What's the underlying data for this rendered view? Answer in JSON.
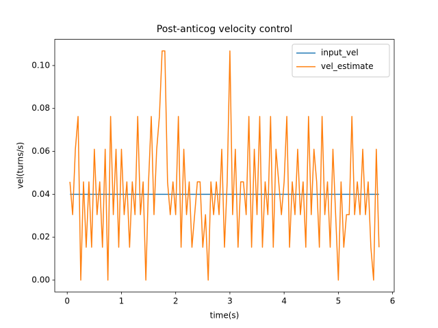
{
  "chart_data": {
    "type": "line",
    "title": "Post-anticog velocity control",
    "xlabel": "time(s)",
    "ylabel": "vel(turns/s)",
    "x": [
      0.05,
      0.1,
      0.15,
      0.2,
      0.25,
      0.3,
      0.35,
      0.4,
      0.45,
      0.5,
      0.55,
      0.6,
      0.65,
      0.7,
      0.75,
      0.8,
      0.85,
      0.9,
      0.95,
      1.0,
      1.05,
      1.1,
      1.15,
      1.2,
      1.25,
      1.3,
      1.35,
      1.4,
      1.45,
      1.5,
      1.55,
      1.6,
      1.65,
      1.7,
      1.75,
      1.8,
      1.85,
      1.9,
      1.95,
      2.0,
      2.05,
      2.1,
      2.15,
      2.2,
      2.25,
      2.3,
      2.35,
      2.4,
      2.45,
      2.5,
      2.55,
      2.6,
      2.65,
      2.7,
      2.75,
      2.8,
      2.85,
      2.9,
      2.95,
      3.0,
      3.05,
      3.1,
      3.15,
      3.2,
      3.25,
      3.3,
      3.35,
      3.4,
      3.45,
      3.5,
      3.55,
      3.6,
      3.65,
      3.7,
      3.75,
      3.8,
      3.85,
      3.9,
      3.95,
      4.0,
      4.05,
      4.1,
      4.15,
      4.2,
      4.25,
      4.3,
      4.35,
      4.4,
      4.45,
      4.5,
      4.55,
      4.6,
      4.65,
      4.7,
      4.75,
      4.8,
      4.85,
      4.9,
      4.95,
      5.0,
      5.05,
      5.1,
      5.15,
      5.2,
      5.25,
      5.3,
      5.35,
      5.4,
      5.45,
      5.5,
      5.55,
      5.6,
      5.65,
      5.7,
      5.75
    ],
    "series": [
      {
        "name": "input_vel",
        "color": "#1f77b4",
        "x": [
          0.05,
          5.75
        ],
        "values": [
          0.04,
          0.04
        ]
      },
      {
        "name": "vel_estimate",
        "color": "#ff7f0e",
        "values": [
          0.0458,
          0.0305,
          0.061,
          0.0763,
          0,
          0.0458,
          0.0153,
          0.0458,
          0.0153,
          0.061,
          0.0305,
          0.0458,
          0.0153,
          0.061,
          0,
          0.0763,
          0.0305,
          0.061,
          0.0153,
          0.061,
          0.0305,
          0.0458,
          0.0153,
          0.0458,
          0.0305,
          0.0763,
          0.0305,
          0.0458,
          0,
          0.0458,
          0.0763,
          0.0305,
          0.061,
          0.0763,
          0.1068,
          0.1068,
          0.0458,
          0.0305,
          0.0458,
          0.0305,
          0.0763,
          0.0153,
          0.061,
          0.0305,
          0.0458,
          0.0153,
          0.0305,
          0.0458,
          0.0458,
          0.0153,
          0.0305,
          0,
          0.0458,
          0.0305,
          0.0458,
          0.0305,
          0.061,
          0.0153,
          0.0458,
          0.1068,
          0.0305,
          0.061,
          0.0153,
          0.0458,
          0.0458,
          0.0305,
          0.0763,
          0.0153,
          0.061,
          0.0305,
          0.0763,
          0.0153,
          0.0458,
          0.0305,
          0.0763,
          0.0153,
          0.061,
          0.0458,
          0.0305,
          0.0458,
          0.0763,
          0.0153,
          0.0458,
          0.0305,
          0.061,
          0.0305,
          0.0458,
          0.0153,
          0.0763,
          0.0305,
          0.061,
          0.0458,
          0.0153,
          0.0763,
          0.0305,
          0.0458,
          0.0153,
          0.061,
          0.0305,
          0,
          0.0458,
          0.0153,
          0.0305,
          0.0305,
          0.0763,
          0.0305,
          0.0458,
          0.0305,
          0.061,
          0.0305,
          0.0458,
          0.0153,
          0,
          0.061,
          0.0153
        ]
      }
    ],
    "xlim": [
      -0.23,
      6.03
    ],
    "xticks": [
      0,
      1,
      2,
      3,
      4,
      5,
      6
    ],
    "ylim": [
      -0.0055,
      0.1122
    ],
    "yticks": [
      {
        "value": 0,
        "label": "0.00"
      },
      {
        "value": 0.02,
        "label": "0.02"
      },
      {
        "value": 0.04,
        "label": "0.04"
      },
      {
        "value": 0.06,
        "label": "0.06"
      },
      {
        "value": 0.08,
        "label": "0.08"
      },
      {
        "value": 0.1,
        "label": "0.10"
      }
    ],
    "legend": "upper right"
  }
}
